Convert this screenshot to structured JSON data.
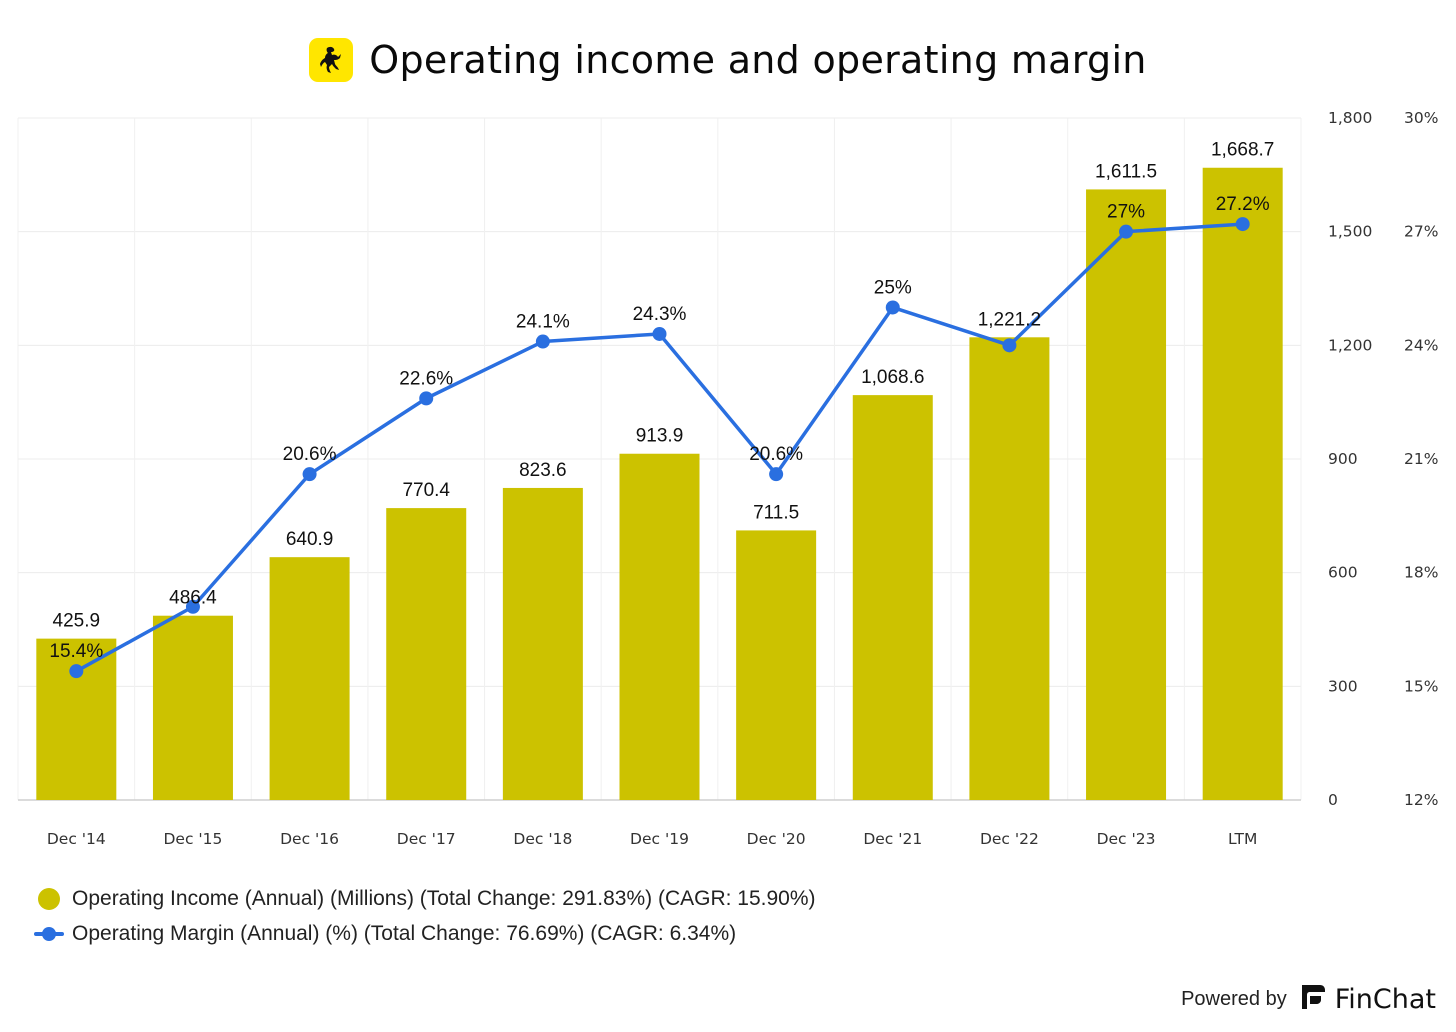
{
  "header": {
    "title": "Operating income and operating margin",
    "logo_icon": "ferrari-horse-icon",
    "logo_color": "#FFE600"
  },
  "chart_data": {
    "type": "bar",
    "title": "Operating income and operating margin",
    "categories": [
      "Dec '14",
      "Dec '15",
      "Dec '16",
      "Dec '17",
      "Dec '18",
      "Dec '19",
      "Dec '20",
      "Dec '21",
      "Dec '22",
      "Dec '23",
      "LTM"
    ],
    "series": [
      {
        "name": "Operating Income (Annual) (Millions) (Total Change: 291.83%) (CAGR: 15.90%)",
        "type": "bar",
        "axis": "left",
        "color": "#CCC200",
        "values": [
          425.9,
          486.4,
          640.9,
          770.4,
          823.6,
          913.9,
          711.5,
          1068.6,
          1221.2,
          1611.5,
          1668.7
        ],
        "labels": [
          "425.9",
          "486.4",
          "640.9",
          "770.4",
          "823.6",
          "913.9",
          "711.5",
          "1,068.6",
          "1,221.2",
          "1,611.5",
          "1,668.7"
        ]
      },
      {
        "name": "Operating Margin (Annual) (%) (Total Change: 76.69%) (CAGR: 6.34%)",
        "type": "line",
        "axis": "right",
        "color": "#2A6FE0",
        "values": [
          15.4,
          17.1,
          20.6,
          22.6,
          24.1,
          24.3,
          20.6,
          25.0,
          24.0,
          27.0,
          27.2
        ],
        "labels": [
          "15.4%",
          "",
          "20.6%",
          "22.6%",
          "24.1%",
          "24.3%",
          "20.6%",
          "25%",
          "",
          "27%",
          "27.2%"
        ]
      }
    ],
    "y_left": {
      "min": 0,
      "max": 1800,
      "ticks": [
        "0",
        "300",
        "600",
        "900",
        "1,200",
        "1,500",
        "1,800"
      ]
    },
    "y_right": {
      "min": 12,
      "max": 30,
      "ticks": [
        "12%",
        "15%",
        "18%",
        "21%",
        "24%",
        "27%",
        "30%"
      ]
    },
    "grid": true,
    "legend_position": "bottom-left"
  },
  "footer": {
    "powered_by": "Powered by",
    "brand": "FinChat",
    "brand_icon": "finchat-logo-icon"
  }
}
